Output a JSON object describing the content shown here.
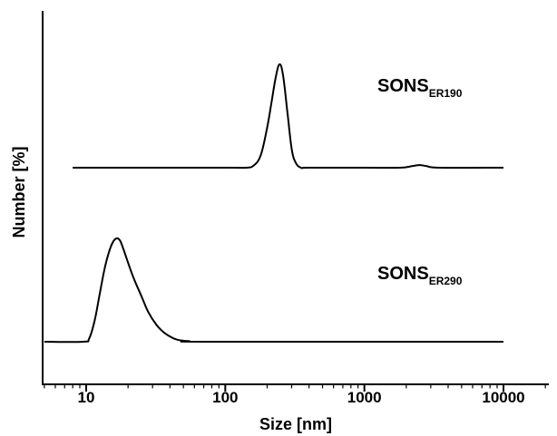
{
  "chart_data": {
    "type": "line",
    "xlabel": "Size [nm]",
    "ylabel": "Number [%]",
    "x_scale": "log",
    "xlim": [
      5,
      20000
    ],
    "x_ticks": [
      {
        "value": 10,
        "label": "10"
      },
      {
        "value": 100,
        "label": "100"
      },
      {
        "value": 1000,
        "label": "1000"
      },
      {
        "value": 10000,
        "label": "10000"
      }
    ],
    "y_ticks_shown": false,
    "grid": false,
    "layout_note": "stacked (offset) traces",
    "series": [
      {
        "label_main": "SONS",
        "label_sub": "ER190",
        "x": [
          8,
          100,
          140,
          160,
          180,
          200,
          215,
          230,
          245,
          260,
          280,
          300,
          320,
          350,
          400,
          1000,
          1800,
          2200,
          2500,
          2800,
          3500,
          10000
        ],
        "y": [
          0,
          0,
          0,
          2,
          12,
          38,
          62,
          85,
          98,
          88,
          52,
          18,
          5,
          0,
          0,
          0,
          0,
          1.5,
          2.5,
          1.5,
          0,
          0
        ]
      },
      {
        "label_main": "SONS",
        "label_sub": "ER290",
        "x": [
          5,
          9.5,
          10.5,
          11.5,
          12.5,
          13.5,
          14.5,
          15.5,
          16.5,
          17.5,
          18.5,
          20,
          22,
          25,
          28,
          32,
          36,
          40,
          45,
          55,
          80,
          10000
        ],
        "y": [
          0,
          0,
          3,
          20,
          45,
          68,
          84,
          94,
          98,
          96,
          88,
          75,
          60,
          43,
          28,
          16,
          9,
          5,
          2,
          0.5,
          0,
          0
        ]
      }
    ]
  }
}
